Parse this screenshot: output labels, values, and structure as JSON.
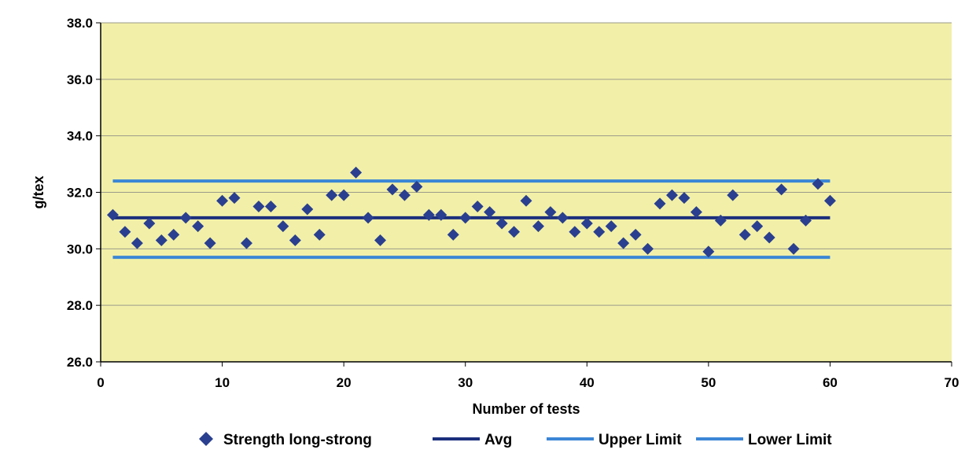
{
  "chart_data": {
    "type": "scatter",
    "title": "",
    "xlabel": "Number of tests",
    "ylabel": "g/tex",
    "xlim": [
      0,
      70
    ],
    "ylim": [
      26.0,
      38.0
    ],
    "x_ticks": [
      "0",
      "10",
      "20",
      "30",
      "40",
      "50",
      "60",
      "70"
    ],
    "y_ticks": [
      "26.0",
      "28.0",
      "30.0",
      "32.0",
      "34.0",
      "36.0",
      "38.0"
    ],
    "grid": "horizontal",
    "legend_position": "bottom",
    "colors": {
      "plot_background": "#f2f0a8",
      "page_background": "#ffffff",
      "marker": "#2a3f8f",
      "avg_line": "#1c2f7d",
      "limit_lines": "#3b86d6"
    },
    "series": [
      {
        "name": "Strength long-strong",
        "kind": "marker",
        "marker": "diamond",
        "x": [
          1,
          2,
          3,
          4,
          5,
          6,
          7,
          8,
          9,
          10,
          11,
          12,
          13,
          14,
          15,
          16,
          17,
          18,
          19,
          20,
          21,
          22,
          23,
          24,
          25,
          26,
          27,
          28,
          29,
          30,
          31,
          32,
          33,
          34,
          35,
          36,
          37,
          38,
          39,
          40,
          41,
          42,
          43,
          44,
          45,
          46,
          47,
          48,
          49,
          50,
          51,
          52,
          53,
          54,
          55,
          56,
          57,
          58,
          59,
          60
        ],
        "y": [
          31.2,
          30.6,
          30.2,
          30.9,
          30.3,
          30.5,
          31.1,
          30.8,
          30.2,
          31.7,
          31.8,
          30.2,
          31.5,
          31.5,
          30.8,
          30.3,
          31.4,
          30.5,
          31.9,
          31.9,
          32.7,
          31.1,
          30.3,
          32.1,
          31.9,
          32.2,
          31.2,
          31.2,
          30.5,
          31.1,
          31.5,
          31.3,
          30.9,
          30.6,
          31.7,
          30.8,
          31.3,
          31.1,
          30.6,
          30.9,
          30.6,
          30.8,
          30.2,
          30.5,
          30.0,
          31.6,
          31.9,
          31.8,
          31.3,
          29.9,
          31.0,
          31.9,
          30.5,
          30.8,
          30.4,
          32.1,
          30.0,
          31.0,
          32.3,
          31.7
        ]
      },
      {
        "name": "Avg",
        "kind": "line",
        "x": [
          1,
          60
        ],
        "y": [
          31.1,
          31.1
        ]
      },
      {
        "name": "Upper Limit",
        "kind": "line",
        "x": [
          1,
          60
        ],
        "y": [
          32.4,
          32.4
        ]
      },
      {
        "name": "Lower Limit",
        "kind": "line",
        "x": [
          1,
          60
        ],
        "y": [
          29.7,
          29.7
        ]
      }
    ]
  }
}
